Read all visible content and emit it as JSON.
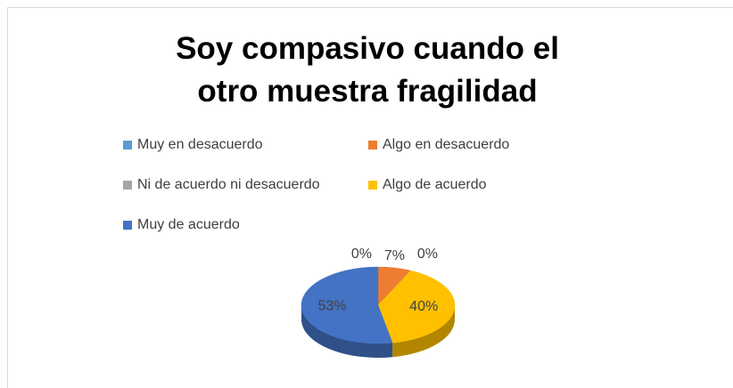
{
  "chart_data": {
    "type": "pie",
    "title": "Soy compasivo cuando el otro muestra fragilidad",
    "categories": [
      "Muy en desacuerdo",
      "Algo en desacuerdo",
      "Ni de acuerdo ni desacuerdo",
      "Algo de acuerdo",
      "Muy de acuerdo"
    ],
    "values": [
      0,
      7,
      0,
      40,
      53
    ],
    "value_labels": [
      "0%",
      "7%",
      "0%",
      "40%",
      "53%"
    ],
    "colors": [
      "#5b9bd5",
      "#ed7d31",
      "#a5a5a5",
      "#ffc000",
      "#4472c4"
    ],
    "legend": "top"
  }
}
